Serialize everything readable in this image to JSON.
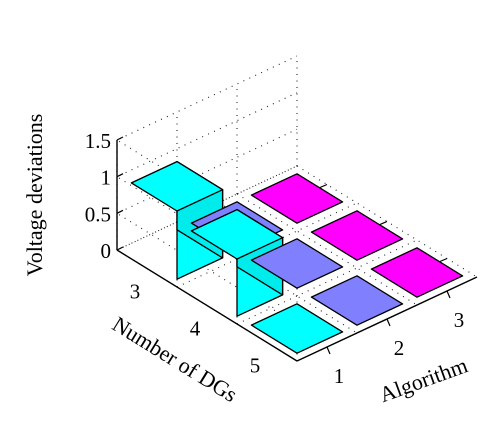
{
  "chart_data": {
    "type": "bar",
    "subtype": "3d-bar",
    "title": "",
    "zlabel": "Voltage deviations",
    "xlabel": "Number of DGs",
    "ylabel": "Algorithm",
    "zlim": [
      0,
      1.5
    ],
    "z_ticks": [
      "0",
      "0.5",
      "1",
      "1.5"
    ],
    "dg_categories": [
      "3",
      "4",
      "5"
    ],
    "algorithm_categories": [
      "1",
      "2",
      "3"
    ],
    "grid": true,
    "bars": [
      {
        "dg": "3",
        "algorithm": "1",
        "value": 0.93,
        "color": "#00ffff"
      },
      {
        "dg": "3",
        "algorithm": "2",
        "value": 0.0,
        "color": "#8080ff"
      },
      {
        "dg": "3",
        "algorithm": "3",
        "value": 0.0,
        "color": "#ff00ff"
      },
      {
        "dg": "4",
        "algorithm": "1",
        "value": 0.78,
        "color": "#00ffff"
      },
      {
        "dg": "4",
        "algorithm": "2",
        "value": 0.0,
        "color": "#8080ff"
      },
      {
        "dg": "4",
        "algorithm": "3",
        "value": 0.0,
        "color": "#ff00ff"
      },
      {
        "dg": "5",
        "algorithm": "1",
        "value": 0.0,
        "color": "#00ffff"
      },
      {
        "dg": "5",
        "algorithm": "2",
        "value": 0.0,
        "color": "#8080ff"
      },
      {
        "dg": "5",
        "algorithm": "3",
        "value": 0.0,
        "color": "#ff00ff"
      }
    ]
  }
}
